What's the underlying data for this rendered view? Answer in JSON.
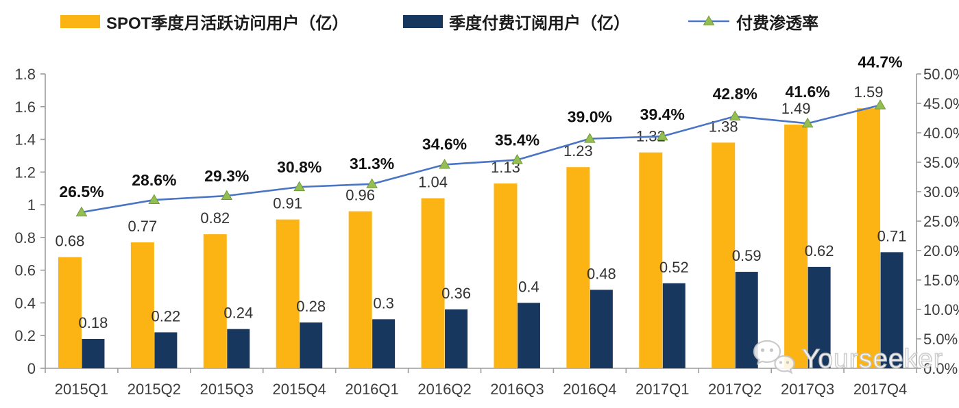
{
  "legend": {
    "mau": {
      "label": "SPOT季度月活跃访问用户（亿）"
    },
    "subs": {
      "label": "季度付费订阅用户（亿）"
    },
    "penetration": {
      "label": "付费渗透率"
    }
  },
  "watermark": {
    "text": "Yourseeker",
    "icon": "wechat-icon"
  },
  "colors": {
    "mau_bar": "#FBB413",
    "subs_bar": "#17375E",
    "line": "#4A74C4",
    "marker": "#95BE52",
    "marker_edge": "#6E9A3A",
    "axis": "#9b9b9b"
  },
  "chart_data": {
    "type": "bar",
    "title": "",
    "categories": [
      "2015Q1",
      "2015Q2",
      "2015Q3",
      "2015Q4",
      "2016Q1",
      "2016Q2",
      "2016Q3",
      "2016Q4",
      "2017Q1",
      "2017Q2",
      "2017Q3",
      "2017Q4"
    ],
    "series": [
      {
        "name": "SPOT季度月活跃访问用户（亿）",
        "type": "bar",
        "axis": "left",
        "values": [
          0.68,
          0.77,
          0.82,
          0.91,
          0.96,
          1.04,
          1.13,
          1.23,
          1.32,
          1.38,
          1.49,
          1.59
        ],
        "labels": [
          "0.68",
          "0.77",
          "0.82",
          "0.91",
          "0.96",
          "1.04",
          "1.13",
          "1.23",
          "1.32",
          "1.38",
          "1.49",
          "1.59"
        ]
      },
      {
        "name": "季度付费订阅用户（亿）",
        "type": "bar",
        "axis": "left",
        "values": [
          0.18,
          0.22,
          0.24,
          0.28,
          0.3,
          0.36,
          0.4,
          0.48,
          0.52,
          0.59,
          0.62,
          0.71
        ],
        "labels": [
          "0.18",
          "0.22",
          "0.24",
          "0.28",
          "0.3",
          "0.36",
          "0.4",
          "0.48",
          "0.52",
          "0.59",
          "0.62",
          "0.71"
        ]
      },
      {
        "name": "付费渗透率",
        "type": "line",
        "axis": "right",
        "marker": "triangle",
        "values": [
          26.5,
          28.6,
          29.3,
          30.8,
          31.3,
          34.6,
          35.4,
          39.0,
          39.4,
          42.8,
          41.6,
          44.7
        ],
        "labels": [
          "26.5%",
          "28.6%",
          "29.3%",
          "30.8%",
          "31.3%",
          "34.6%",
          "35.4%",
          "39.0%",
          "39.4%",
          "42.8%",
          "41.6%",
          "44.7%"
        ]
      }
    ],
    "left_axis": {
      "min": 0,
      "max": 1.8,
      "step": 0.2,
      "tick_labels": [
        "0",
        "0.2",
        "0.4",
        "0.6",
        "0.8",
        "1",
        "1.2",
        "1.4",
        "1.6",
        "1.8"
      ]
    },
    "right_axis": {
      "min": 0,
      "max": 50,
      "step": 5,
      "tick_labels": [
        "0.0%",
        "5.0%",
        "10.0%",
        "15.0%",
        "20.0%",
        "25.0%",
        "30.0%",
        "35.0%",
        "40.0%",
        "45.0%",
        "50.0%"
      ]
    },
    "legend_position": "top",
    "grid": false,
    "pct_label_dy": [
      22,
      21,
      21,
      21,
      22,
      22,
      21,
      24,
      24,
      25,
      38,
      55
    ]
  }
}
